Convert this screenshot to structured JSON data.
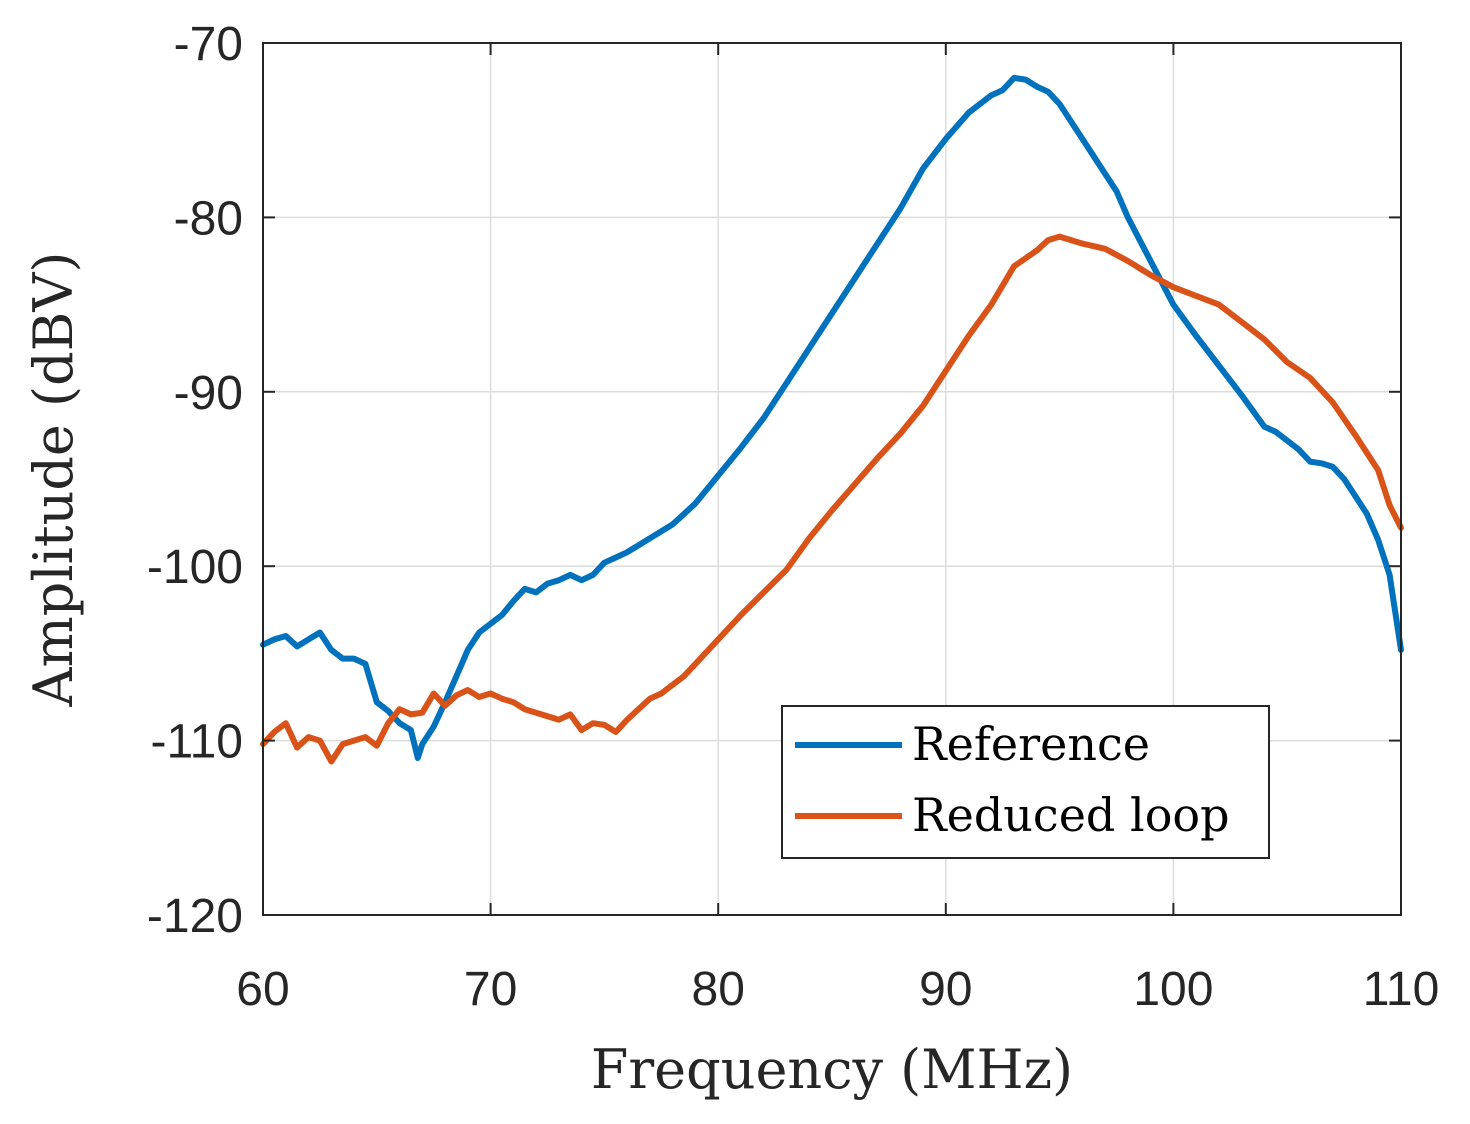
{
  "chart_data": {
    "type": "line",
    "title": "",
    "xlabel": "Frequency (MHz)",
    "ylabel": "Amplitude (dBV)",
    "xlim": [
      60,
      110
    ],
    "ylim": [
      -120,
      -70
    ],
    "xticks": [
      60,
      70,
      80,
      90,
      100,
      110
    ],
    "yticks": [
      -70,
      -80,
      -90,
      -100,
      -110,
      -120
    ],
    "xtick_labels": [
      "60",
      "70",
      "80",
      "90",
      "100",
      "110"
    ],
    "ytick_labels": [
      "-70",
      "-80",
      "-90",
      "-100",
      "-110",
      "-120"
    ],
    "grid": true,
    "legend_position": "bottom-right",
    "series": [
      {
        "name": "Reference",
        "color": "#0072BD",
        "x": [
          60,
          60.5,
          61,
          61.5,
          62,
          62.5,
          63,
          63.5,
          64,
          64.5,
          65,
          65.5,
          66,
          66.5,
          66.8,
          67,
          67.5,
          68,
          68.5,
          69,
          69.5,
          70,
          70.5,
          71,
          71.5,
          72,
          72.5,
          73,
          73.5,
          74,
          74.5,
          75,
          75.5,
          76,
          76.5,
          77,
          77.5,
          78,
          78.5,
          79,
          79.5,
          80,
          80.5,
          81,
          82,
          83,
          84,
          85,
          86,
          87,
          88,
          89,
          90,
          91,
          92,
          92.5,
          93,
          93.5,
          94,
          94.5,
          95,
          96,
          97,
          97.5,
          98,
          99,
          100,
          101,
          102,
          103,
          104,
          104.5,
          105,
          105.5,
          106,
          106.5,
          107,
          107.5,
          108,
          108.5,
          109,
          109.5,
          110
        ],
        "y": [
          -104.5,
          -104.2,
          -104,
          -104.6,
          -104.2,
          -103.8,
          -104.8,
          -105.3,
          -105.3,
          -105.6,
          -107.8,
          -108.3,
          -109,
          -109.4,
          -111,
          -110.2,
          -109.2,
          -107.8,
          -106.3,
          -104.8,
          -103.8,
          -103.3,
          -102.8,
          -102,
          -101.3,
          -101.5,
          -101,
          -100.8,
          -100.5,
          -100.8,
          -100.5,
          -99.8,
          -99.5,
          -99.2,
          -98.8,
          -98.4,
          -98,
          -97.6,
          -97,
          -96.4,
          -95.6,
          -94.8,
          -94,
          -93.2,
          -91.5,
          -89.5,
          -87.5,
          -85.5,
          -83.5,
          -81.5,
          -79.5,
          -77.2,
          -75.5,
          -74,
          -73,
          -72.7,
          -72,
          -72.1,
          -72.5,
          -72.8,
          -73.5,
          -75.5,
          -77.5,
          -78.5,
          -80,
          -82.5,
          -85,
          -86.8,
          -88.5,
          -90.2,
          -92,
          -92.3,
          -92.8,
          -93.3,
          -94,
          -94.1,
          -94.3,
          -95,
          -96,
          -97,
          -98.5,
          -100.5,
          -104.8
        ]
      },
      {
        "name": "Reduced loop",
        "color": "#D95319",
        "x": [
          60,
          60.5,
          61,
          61.5,
          62,
          62.5,
          63,
          63.5,
          64,
          64.5,
          65,
          65.5,
          66,
          66.5,
          67,
          67.5,
          68,
          68.5,
          69,
          69.5,
          70,
          70.5,
          71,
          71.5,
          72,
          72.5,
          73,
          73.5,
          74,
          74.5,
          75,
          75.5,
          76,
          76.5,
          77,
          77.5,
          78,
          78.5,
          79,
          80,
          81,
          82,
          83,
          84,
          85,
          86,
          87,
          88,
          89,
          90,
          91,
          92,
          93,
          94,
          94.5,
          95,
          95.5,
          96,
          97,
          98,
          99,
          100,
          101,
          102,
          103,
          104,
          105,
          106,
          107,
          108,
          109,
          109.5,
          110
        ],
        "y": [
          -110.2,
          -109.5,
          -109,
          -110.4,
          -109.8,
          -110,
          -111.2,
          -110.2,
          -110,
          -109.8,
          -110.3,
          -109,
          -108.2,
          -108.5,
          -108.4,
          -107.3,
          -108,
          -107.4,
          -107.1,
          -107.5,
          -107.3,
          -107.6,
          -107.8,
          -108.2,
          -108.4,
          -108.6,
          -108.8,
          -108.5,
          -109.4,
          -109,
          -109.1,
          -109.5,
          -108.8,
          -108.2,
          -107.6,
          -107.3,
          -106.8,
          -106.3,
          -105.6,
          -104.2,
          -102.8,
          -101.5,
          -100.2,
          -98.4,
          -96.8,
          -95.3,
          -93.8,
          -92.4,
          -90.8,
          -88.8,
          -86.8,
          -85,
          -82.8,
          -81.9,
          -81.3,
          -81.1,
          -81.3,
          -81.5,
          -81.8,
          -82.5,
          -83.3,
          -84,
          -84.5,
          -85,
          -86,
          -87,
          -88.3,
          -89.2,
          -90.6,
          -92.5,
          -94.5,
          -96.5,
          -97.8
        ]
      }
    ]
  }
}
